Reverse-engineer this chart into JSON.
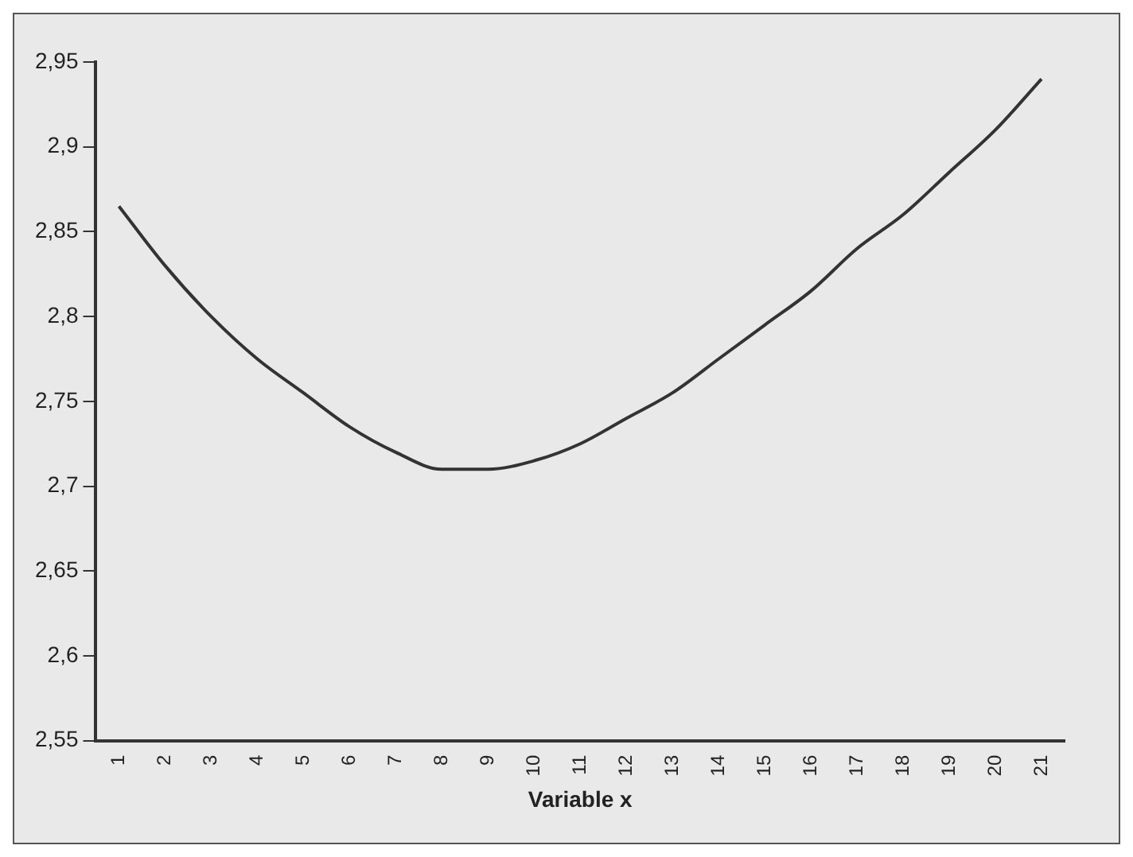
{
  "chart_data": {
    "type": "line",
    "xlabel": "Variable x",
    "categories": [
      "1",
      "2",
      "3",
      "4",
      "5",
      "6",
      "7",
      "8",
      "9",
      "10",
      "11",
      "12",
      "13",
      "14",
      "15",
      "16",
      "17",
      "18",
      "19",
      "20",
      "21"
    ],
    "series": [
      {
        "color": "#333333",
        "values": [
          2.865,
          2.83,
          2.8,
          2.775,
          2.755,
          2.735,
          2.72,
          2.71,
          2.71,
          2.715,
          2.725,
          2.74,
          2.755,
          2.775,
          2.795,
          2.815,
          2.84,
          2.86,
          2.885,
          2.91,
          2.94
        ]
      }
    ],
    "ylim": [
      2.55,
      2.95
    ],
    "yticks": [
      {
        "value": 2.55,
        "label": "2,55"
      },
      {
        "value": 2.6,
        "label": "2,6"
      },
      {
        "value": 2.65,
        "label": "2,65"
      },
      {
        "value": 2.7,
        "label": "2,7"
      },
      {
        "value": 2.75,
        "label": "2,75"
      },
      {
        "value": 2.8,
        "label": "2,8"
      },
      {
        "value": 2.85,
        "label": "2,85"
      },
      {
        "value": 2.9,
        "label": "2,9"
      },
      {
        "value": 2.95,
        "label": "2,95"
      }
    ],
    "grid": false,
    "legend": false,
    "marker": "none",
    "line_style": "solid"
  }
}
